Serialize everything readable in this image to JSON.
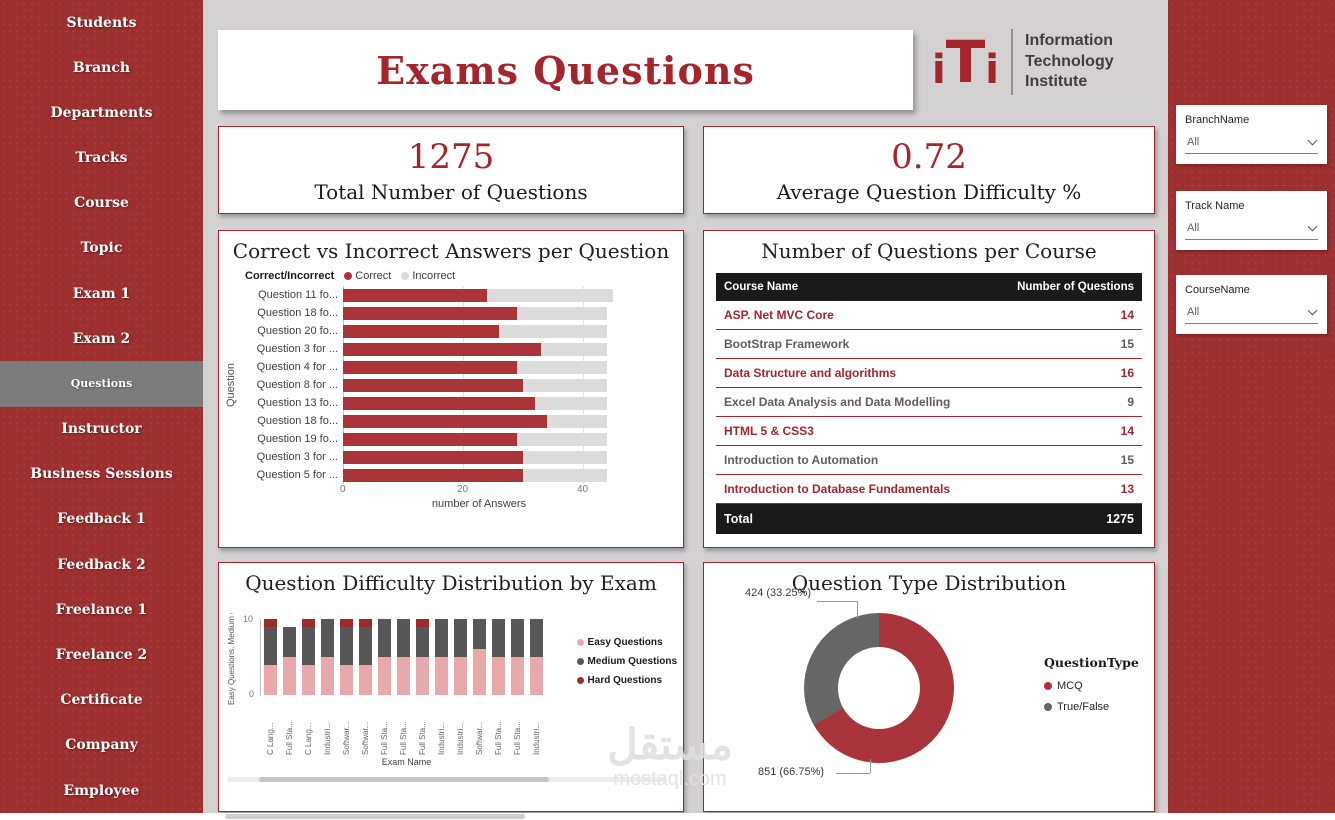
{
  "colors": {
    "sidebar_red": "#9E2F2F",
    "accent_red": "#A4262C",
    "bar_red": "#A93439",
    "incorrect_gray": "#DCDCDC",
    "easy_pink": "#E8A9AD",
    "medium_gray": "#575757",
    "hard_red": "#9E2B2B",
    "page_bg": "#D3D1D1"
  },
  "sidebar": {
    "items": [
      {
        "label": "Students",
        "active": false
      },
      {
        "label": "Branch",
        "active": false
      },
      {
        "label": "Departments",
        "active": false
      },
      {
        "label": "Tracks",
        "active": false
      },
      {
        "label": "Course",
        "active": false
      },
      {
        "label": "Topic",
        "active": false
      },
      {
        "label": "Exam 1",
        "active": false
      },
      {
        "label": "Exam 2",
        "active": false
      },
      {
        "label": "Questions",
        "active": true
      },
      {
        "label": "Instructor",
        "active": false
      },
      {
        "label": "Business Sessions",
        "active": false
      },
      {
        "label": "Feedback 1",
        "active": false
      },
      {
        "label": "Feedback 2",
        "active": false
      },
      {
        "label": "Freelance 1",
        "active": false
      },
      {
        "label": "Freelance 2",
        "active": false
      },
      {
        "label": "Certificate",
        "active": false
      },
      {
        "label": "Company",
        "active": false
      },
      {
        "label": "Employee",
        "active": false
      }
    ]
  },
  "header": {
    "title": "Exams Questions"
  },
  "logo": {
    "mark_left": "i",
    "mark_mid": "T",
    "mark_right": "i",
    "lines": [
      "Information",
      "Technology",
      "Institute"
    ]
  },
  "kpis": [
    {
      "value": "1275",
      "label": "Total Number of Questions"
    },
    {
      "value": "0.72",
      "label": "Average Question Difficulty %"
    }
  ],
  "filters": [
    {
      "label": "BranchName",
      "value": "All"
    },
    {
      "label": "Track Name",
      "value": "All"
    },
    {
      "label": "CourseName",
      "value": "All"
    }
  ],
  "watermark": {
    "arabic": "مستقل",
    "latin": "mostaql.com"
  },
  "chart_data": [
    {
      "type": "bar",
      "orientation": "horizontal",
      "stacked": true,
      "title": "Correct vs Incorrect Answers per Question",
      "legend_title": "Correct/Incorrect",
      "categories": [
        "Question 11 fo...",
        "Question 18 fo...",
        "Question 20 fo...",
        "Question 3 for ...",
        "Question 4 for ...",
        "Question 8 for ...",
        "Question 13 fo...",
        "Question 18 fo...",
        "Question 19 fo...",
        "Question 3 for ...",
        "Question 5 for ..."
      ],
      "series": [
        {
          "name": "Correct",
          "color": "#A93439",
          "values": [
            24,
            29,
            26,
            33,
            29,
            30,
            32,
            34,
            29,
            30,
            30
          ]
        },
        {
          "name": "Incorrect",
          "color": "#DCDCDC",
          "values": [
            21,
            15,
            18,
            11,
            15,
            14,
            12,
            10,
            15,
            14,
            14
          ]
        }
      ],
      "xlabel": "number of Answers",
      "ylabel": "Question",
      "xticks": [
        0,
        20,
        40
      ],
      "xlim": [
        0,
        45
      ]
    },
    {
      "type": "table",
      "title": "Number of Questions per Course",
      "columns": [
        "Course Name",
        "Number of Questions"
      ],
      "rows": [
        {
          "name": "ASP. Net MVC Core",
          "value": 14,
          "emphasis": "red"
        },
        {
          "name": "BootStrap Framework",
          "value": 15,
          "emphasis": "gray"
        },
        {
          "name": "Data Structure and algorithms",
          "value": 16,
          "emphasis": "red"
        },
        {
          "name": "Excel Data Analysis and Data Modelling",
          "value": 9,
          "emphasis": "gray"
        },
        {
          "name": "HTML 5 & CSS3",
          "value": 14,
          "emphasis": "red"
        },
        {
          "name": "Introduction to Automation",
          "value": 15,
          "emphasis": "gray"
        },
        {
          "name": "Introduction to Database Fundamentals",
          "value": 13,
          "emphasis": "red"
        }
      ],
      "total": {
        "label": "Total",
        "value": "1275"
      }
    },
    {
      "type": "bar",
      "orientation": "vertical",
      "stacked": true,
      "title": "Question Difficulty Distribution by Exam",
      "categories": [
        "C Lang...",
        "Full Sta...",
        "C Lang...",
        "Industri...",
        "Softwar...",
        "Softwar...",
        "Full Sta...",
        "Full Sta...",
        "Full Sta...",
        "Industri...",
        "Industri...",
        "Softwar...",
        "Full Sta...",
        "Full Sta...",
        "Industri..."
      ],
      "series": [
        {
          "name": "Easy Questions",
          "color": "#E8A9AD",
          "values": [
            4,
            5,
            4,
            5,
            4,
            4,
            5,
            5,
            5,
            5,
            5,
            6,
            5,
            5,
            5
          ]
        },
        {
          "name": "Medium Questions",
          "color": "#575757",
          "values": [
            5,
            4,
            5,
            5,
            5,
            5,
            5,
            5,
            4,
            5,
            5,
            4,
            5,
            5,
            5
          ]
        },
        {
          "name": "Hard Questions",
          "color": "#9E2B2B",
          "values": [
            1,
            0,
            1,
            0,
            1,
            1,
            0,
            0,
            1,
            0,
            0,
            0,
            0,
            0,
            0
          ]
        }
      ],
      "xlabel": "Exam Name",
      "ylabel": "Easy Questions, Medium Q...",
      "yticks": [
        0,
        10
      ],
      "ylim": [
        0,
        10
      ]
    },
    {
      "type": "pie",
      "donut": true,
      "title": "Question Type Distribution",
      "legend_title": "QuestionType",
      "slices": [
        {
          "name": "MCQ",
          "value": 851,
          "pct": 66.75,
          "color": "#A93439",
          "callout": "851 (66.75%)"
        },
        {
          "name": "True/False",
          "value": 424,
          "pct": 33.25,
          "color": "#666666",
          "callout": "424 (33.25%)"
        }
      ]
    }
  ]
}
